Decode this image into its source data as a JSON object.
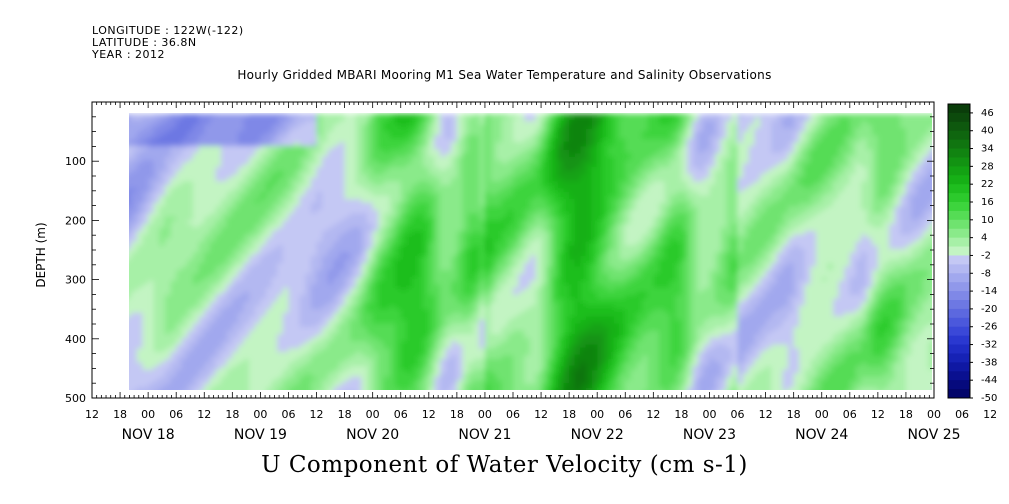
{
  "header": {
    "longitude": "LONGITUDE : 122W(-122)",
    "latitude": "LATITUDE : 36.8N",
    "year": "YEAR : 2012"
  },
  "chart_data": {
    "type": "heatmap",
    "title": "Hourly Gridded MBARI Mooring M1 Sea Water Temperature and Salinity Observations",
    "xlabel": "U Component of Water Velocity (cm s-1)",
    "ylabel": "DEPTH (m)",
    "y_ticks": [
      100,
      200,
      300,
      400,
      500
    ],
    "ylim": [
      500,
      0
    ],
    "data_depth_range": [
      20,
      490
    ],
    "x_hour_ticks": [
      "12",
      "18",
      "00",
      "06",
      "12",
      "18",
      "00",
      "06",
      "12",
      "18",
      "00",
      "06",
      "12",
      "18",
      "00",
      "06",
      "12",
      "18",
      "00",
      "06",
      "12",
      "18",
      "00",
      "06",
      "12",
      "18",
      "00",
      "06",
      "12",
      "18",
      "00",
      "06",
      "12"
    ],
    "x_day_labels": [
      "NOV 18",
      "NOV 19",
      "NOV 20",
      "NOV 21",
      "NOV 22",
      "NOV 23",
      "NOV 24",
      "NOV 25"
    ],
    "x_range_hours": [
      12,
      192
    ],
    "data_x_range_hours": [
      18,
      192
    ],
    "colorbar": {
      "labels": [
        "46",
        "40",
        "34",
        "28",
        "22",
        "16",
        "10",
        "4",
        "-2",
        "-8",
        "-14",
        "-20",
        "-26",
        "-32",
        "-38",
        "-44",
        "-50"
      ],
      "levels": [
        49,
        46,
        43,
        40,
        37,
        34,
        31,
        28,
        25,
        22,
        19,
        16,
        13,
        10,
        7,
        4,
        1,
        -2,
        -5,
        -8,
        -11,
        -14,
        -17,
        -20,
        -23,
        -26,
        -29,
        -32,
        -35,
        -38,
        -41,
        -44,
        -47,
        -50
      ],
      "colors": [
        "#0a3d0a",
        "#0c4a0c",
        "#0e580e",
        "#0f660f",
        "#107510",
        "#118411",
        "#129312",
        "#13a213",
        "#16b016",
        "#1fbe1f",
        "#2cca2c",
        "#3dd43d",
        "#55dc55",
        "#6fe36f",
        "#8aea8a",
        "#a7f0a7",
        "#c3f4c3",
        "#c4c8f4",
        "#b3b8f1",
        "#a1a8ee",
        "#9098ea",
        "#7f88e7",
        "#6d78e3",
        "#5c68df",
        "#4b58dc",
        "#3a48d8",
        "#2a38d0",
        "#1f2cc4",
        "#1622b5",
        "#0f18a3",
        "#0a1090",
        "#060a7d",
        "#03056a"
      ]
    },
    "grid": false,
    "legend": "right"
  }
}
